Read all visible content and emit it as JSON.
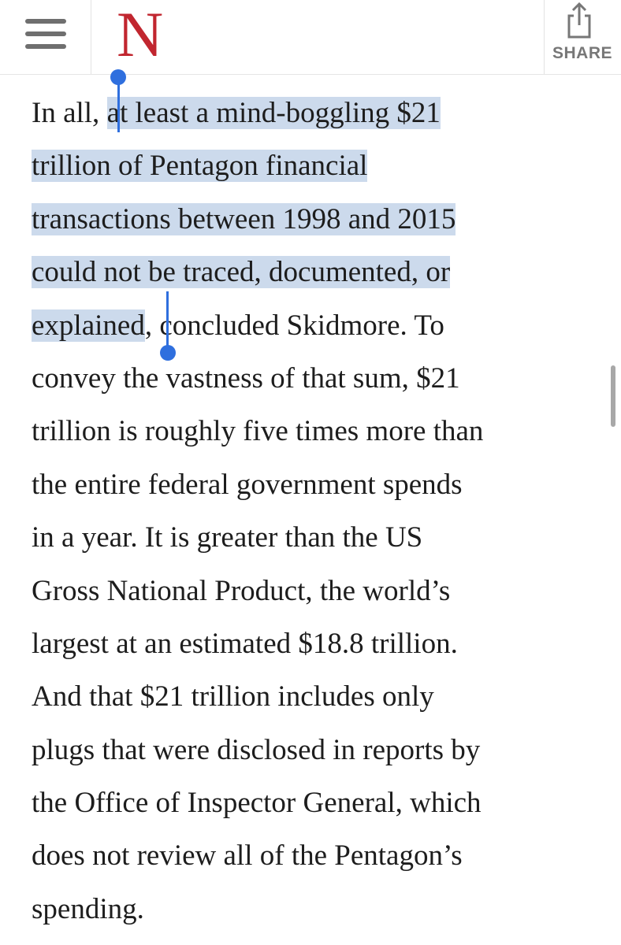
{
  "header": {
    "logo_text": "N",
    "share_label": "SHARE"
  },
  "article": {
    "paragraph_lines": [
      {
        "before": "In all, ",
        "selected": "at least a mind-boggling $21",
        "after": ""
      },
      {
        "before": "",
        "selected": "trillion of Pentagon financial",
        "after": ""
      },
      {
        "before": "",
        "selected": "transactions between 1998 and 2015",
        "after": ""
      },
      {
        "before": "",
        "selected": "could not be traced, documented, or",
        "after": ""
      },
      {
        "before": "",
        "selected": "explained",
        "after": ", concluded Skidmore. To"
      },
      {
        "before": "convey the vastness of that sum, $21",
        "selected": "",
        "after": ""
      },
      {
        "before": "trillion is roughly five times more than",
        "selected": "",
        "after": ""
      },
      {
        "before": "the entire federal government spends",
        "selected": "",
        "after": ""
      },
      {
        "before": "in a year. It is greater than the US",
        "selected": "",
        "after": ""
      },
      {
        "before": "Gross National Product, the world’s",
        "selected": "",
        "after": ""
      },
      {
        "before": "largest at an estimated $18.8 trillion.",
        "selected": "",
        "after": ""
      },
      {
        "before": "And that $21 trillion includes only",
        "selected": "",
        "after": ""
      },
      {
        "before": "plugs that were disclosed in reports by",
        "selected": "",
        "after": ""
      },
      {
        "before": "the Office of Inspector General, which",
        "selected": "",
        "after": ""
      },
      {
        "before": "does not review all of the Pentagon’s",
        "selected": "",
        "after": ""
      },
      {
        "before": "spending.",
        "selected": "",
        "after": ""
      }
    ]
  },
  "colors": {
    "logo": "#c1262f",
    "selection_highlight": "#ccdaec",
    "selection_handle": "#2f6fde",
    "body_text": "#1d1d1d",
    "share_label": "#777777"
  },
  "icons": {
    "menu": "hamburger-menu-icon",
    "share": "share-icon"
  }
}
